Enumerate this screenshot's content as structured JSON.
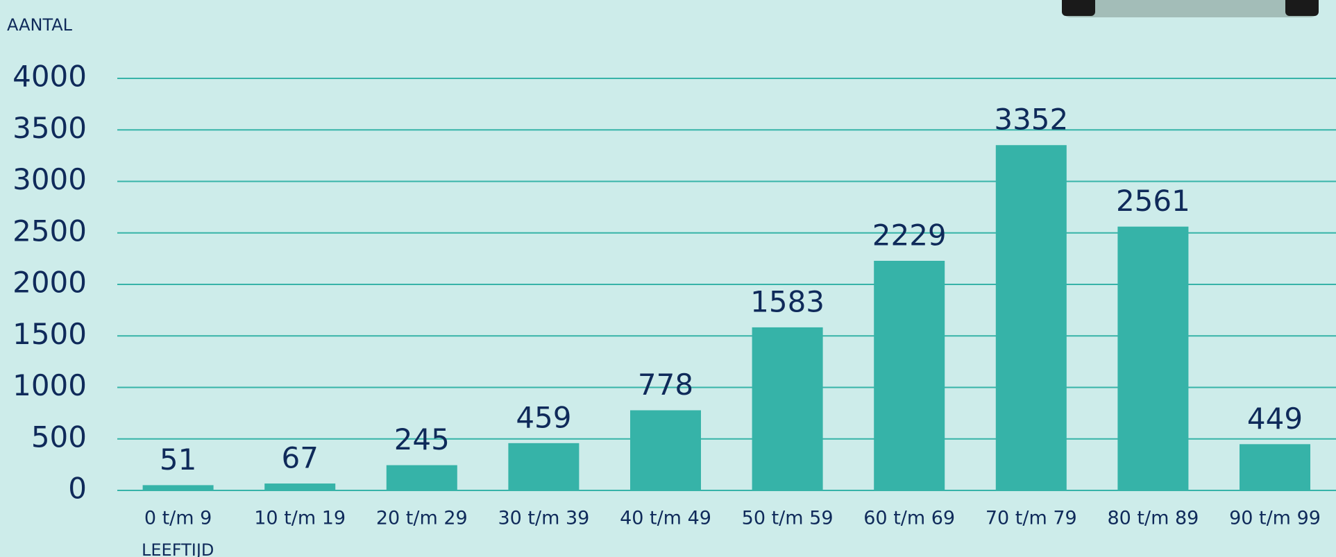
{
  "chart_data": {
    "type": "bar",
    "y_axis_label": "AANTAL",
    "x_axis_label": "LEEFTIJD",
    "categories": [
      "0 t/m 9",
      "10 t/m 19",
      "20 t/m 29",
      "30 t/m 39",
      "40 t/m 49",
      "50 t/m 59",
      "60 t/m 69",
      "70 t/m 79",
      "80 t/m 89",
      "90 t/m 99"
    ],
    "values": [
      51,
      67,
      245,
      459,
      778,
      1583,
      2229,
      3352,
      2561,
      449
    ],
    "color": "#36b3a8",
    "ylim": [
      0,
      4000
    ],
    "yticks": [
      0,
      500,
      1000,
      1500,
      2000,
      2500,
      3000,
      3500,
      4000
    ],
    "grid": true
  }
}
